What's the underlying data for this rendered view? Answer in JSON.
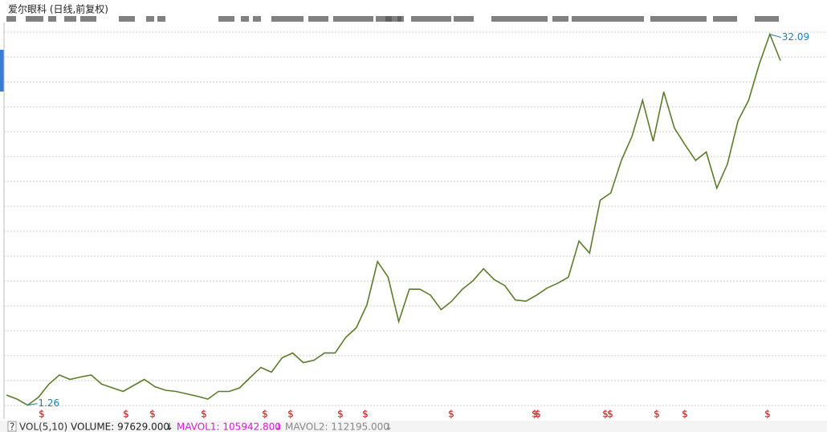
{
  "chart_data": {
    "type": "line",
    "title": "爱尔眼科 (日线,前复权)",
    "values": [
      2.1,
      1.77,
      1.26,
      1.9,
      3.0,
      3.77,
      3.4,
      3.6,
      3.77,
      3.0,
      2.7,
      2.4,
      2.9,
      3.4,
      2.8,
      2.5,
      2.4,
      2.2,
      2.0,
      1.77,
      2.4,
      2.4,
      2.7,
      3.57,
      4.4,
      4.0,
      5.2,
      5.6,
      4.8,
      5.0,
      5.6,
      5.6,
      6.9,
      7.7,
      9.6,
      13.2,
      11.9,
      8.2,
      10.9,
      10.9,
      10.4,
      9.2,
      9.9,
      10.9,
      11.6,
      12.6,
      11.7,
      11.2,
      10.0,
      9.9,
      10.4,
      11.0,
      11.4,
      11.9,
      14.9,
      13.9,
      18.3,
      18.9,
      21.6,
      23.6,
      26.6,
      23.2,
      27.3,
      24.3,
      22.9,
      21.6,
      22.3,
      19.3,
      21.3,
      24.9,
      26.6,
      29.6,
      32.09,
      29.9
    ],
    "color": "#5a7d2a",
    "ylim": [
      0.9,
      32.6
    ],
    "grid": true,
    "low_label": "1.26",
    "high_label": "32.09",
    "marker_symbol": "$",
    "volume_bar": {
      "indicator": "VOL(5,10)",
      "volume": "VOLUME: 97629.000",
      "mavol1": "MAVOL1: 105942.800",
      "mavol2": "MAVOL2: 112195.000"
    }
  }
}
